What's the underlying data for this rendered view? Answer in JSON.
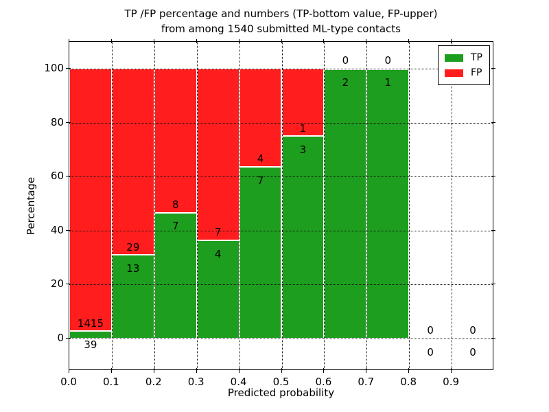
{
  "header": {
    "title_line1": "TP /FP percentage and numbers (TP-bottom value, FP-upper)",
    "title_line2": "from among 1540 submitted ML-type contacts"
  },
  "colors": {
    "tp_green": "#1e9e1e",
    "fp_red": "#ff1d1d",
    "grid": "#111111",
    "spine": "#000000",
    "bar_edge": "#ffffff",
    "background": "#ffffff",
    "text": "#000000"
  },
  "chart_data": {
    "type": "bar",
    "stacked_percentage": true,
    "title_lines": [
      "TP /FP percentage and numbers (TP-bottom value, FP-upper)",
      "from among 1540 submitted ML-type contacts"
    ],
    "xlabel": "Predicted probability",
    "ylabel": "Percentage",
    "total_contacts": 1540,
    "bin_edges": [
      0.0,
      0.1,
      0.2,
      0.3,
      0.4,
      0.5,
      0.6,
      0.7,
      0.8,
      0.9,
      1.0
    ],
    "xticks": [
      "0.0",
      "0.1",
      "0.2",
      "0.3",
      "0.4",
      "0.5",
      "0.6",
      "0.7",
      "0.8",
      "0.9"
    ],
    "yticks": [
      0,
      20,
      40,
      60,
      80,
      100
    ],
    "xlim": [
      0.0,
      1.0
    ],
    "ylim": [
      -12,
      110
    ],
    "grid": true,
    "grid_style": "dotted",
    "legend_position": "upper right",
    "annotation_note": "TP count below segment boundary, FP count above segment boundary",
    "series": [
      {
        "name": "TP",
        "color": "#1e9e1e",
        "counts": [
          39,
          13,
          7,
          4,
          7,
          3,
          2,
          1,
          0,
          0
        ]
      },
      {
        "name": "FP",
        "color": "#ff1d1d",
        "counts": [
          1415,
          29,
          8,
          7,
          4,
          1,
          0,
          0,
          0,
          0
        ]
      }
    ]
  }
}
